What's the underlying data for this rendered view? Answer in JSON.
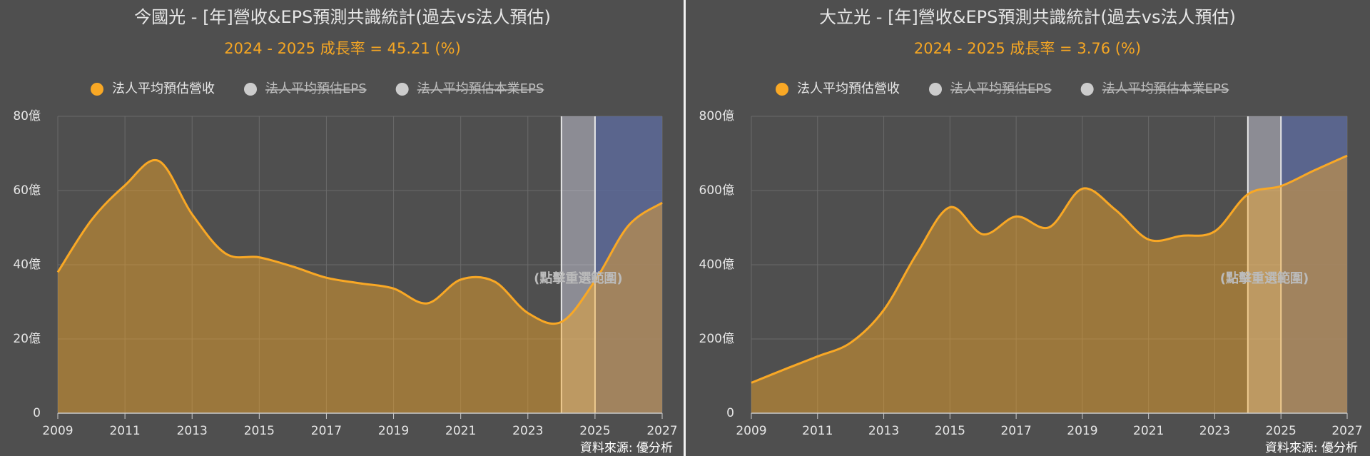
{
  "chart_data": [
    {
      "type": "area",
      "title": "今國光 - [年]營收&EPS預測共識統計(過去vs法人預估)",
      "subtitle": "2024 - 2025 成長率 = 45.21 (%)",
      "x": [
        2009,
        2010,
        2011,
        2012,
        2013,
        2014,
        2015,
        2016,
        2017,
        2018,
        2019,
        2020,
        2021,
        2022,
        2023,
        2024,
        2025,
        2026,
        2027
      ],
      "series": [
        {
          "name": "法人平均預估營收",
          "color": "#f9a825",
          "visible": true,
          "values": [
            38,
            52,
            61.4,
            68,
            53.6,
            43,
            42,
            39.5,
            36.5,
            35,
            33.6,
            29.6,
            36,
            35.5,
            27,
            24.6,
            35.7,
            50.6,
            56.7
          ]
        },
        {
          "name": "法人平均預估EPS",
          "color": "#cccccc",
          "visible": false
        },
        {
          "name": "法人平均預估本業EPS",
          "color": "#cccccc",
          "visible": false
        }
      ],
      "xlim": [
        2009,
        2027
      ],
      "xticks": [
        2009,
        2011,
        2013,
        2015,
        2017,
        2019,
        2021,
        2023,
        2025,
        2027
      ],
      "ylim": [
        0,
        80
      ],
      "yticks": [
        0,
        {
          "value": 20,
          "label": "20億"
        },
        {
          "value": 40,
          "label": "40億"
        },
        {
          "value": 60,
          "label": "60億"
        },
        {
          "value": 80,
          "label": "80億"
        }
      ],
      "grid": true,
      "bands": [
        {
          "from": 2024,
          "to": 2025,
          "color": "#d8d8e8"
        },
        {
          "from": 2025,
          "to": 2027,
          "color": "#5c6a9c"
        }
      ],
      "annotation": "(點擊重選範圍)",
      "source": "資料來源: 優分析"
    },
    {
      "type": "area",
      "title": "大立光 - [年]營收&EPS預測共識統計(過去vs法人預估)",
      "subtitle": "2024 - 2025 成長率 = 3.76 (%)",
      "x": [
        2009,
        2010,
        2011,
        2012,
        2013,
        2014,
        2015,
        2016,
        2017,
        2018,
        2019,
        2020,
        2021,
        2022,
        2023,
        2024,
        2025,
        2026,
        2027
      ],
      "series": [
        {
          "name": "法人平均預估營收",
          "color": "#f9a825",
          "visible": true,
          "values": [
            82,
            118,
            153,
            190,
            278,
            430,
            555,
            482,
            530,
            501,
            605,
            548,
            468,
            478,
            490,
            590,
            612,
            654,
            694
          ]
        },
        {
          "name": "法人平均預估EPS",
          "color": "#cccccc",
          "visible": false
        },
        {
          "name": "法人平均預估本業EPS",
          "color": "#cccccc",
          "visible": false
        }
      ],
      "xlim": [
        2009,
        2027
      ],
      "xticks": [
        2009,
        2011,
        2013,
        2015,
        2017,
        2019,
        2021,
        2023,
        2025,
        2027
      ],
      "ylim": [
        0,
        800
      ],
      "yticks": [
        0,
        {
          "value": 200,
          "label": "200億"
        },
        {
          "value": 400,
          "label": "400億"
        },
        {
          "value": 600,
          "label": "600億"
        },
        {
          "value": 800,
          "label": "800億"
        }
      ],
      "grid": true,
      "bands": [
        {
          "from": 2024,
          "to": 2025,
          "color": "#d8d8e8"
        },
        {
          "from": 2025,
          "to": 2027,
          "color": "#5c6a9c"
        }
      ],
      "annotation": "(點擊重選範圍)",
      "source": "資料來源: 優分析"
    }
  ]
}
